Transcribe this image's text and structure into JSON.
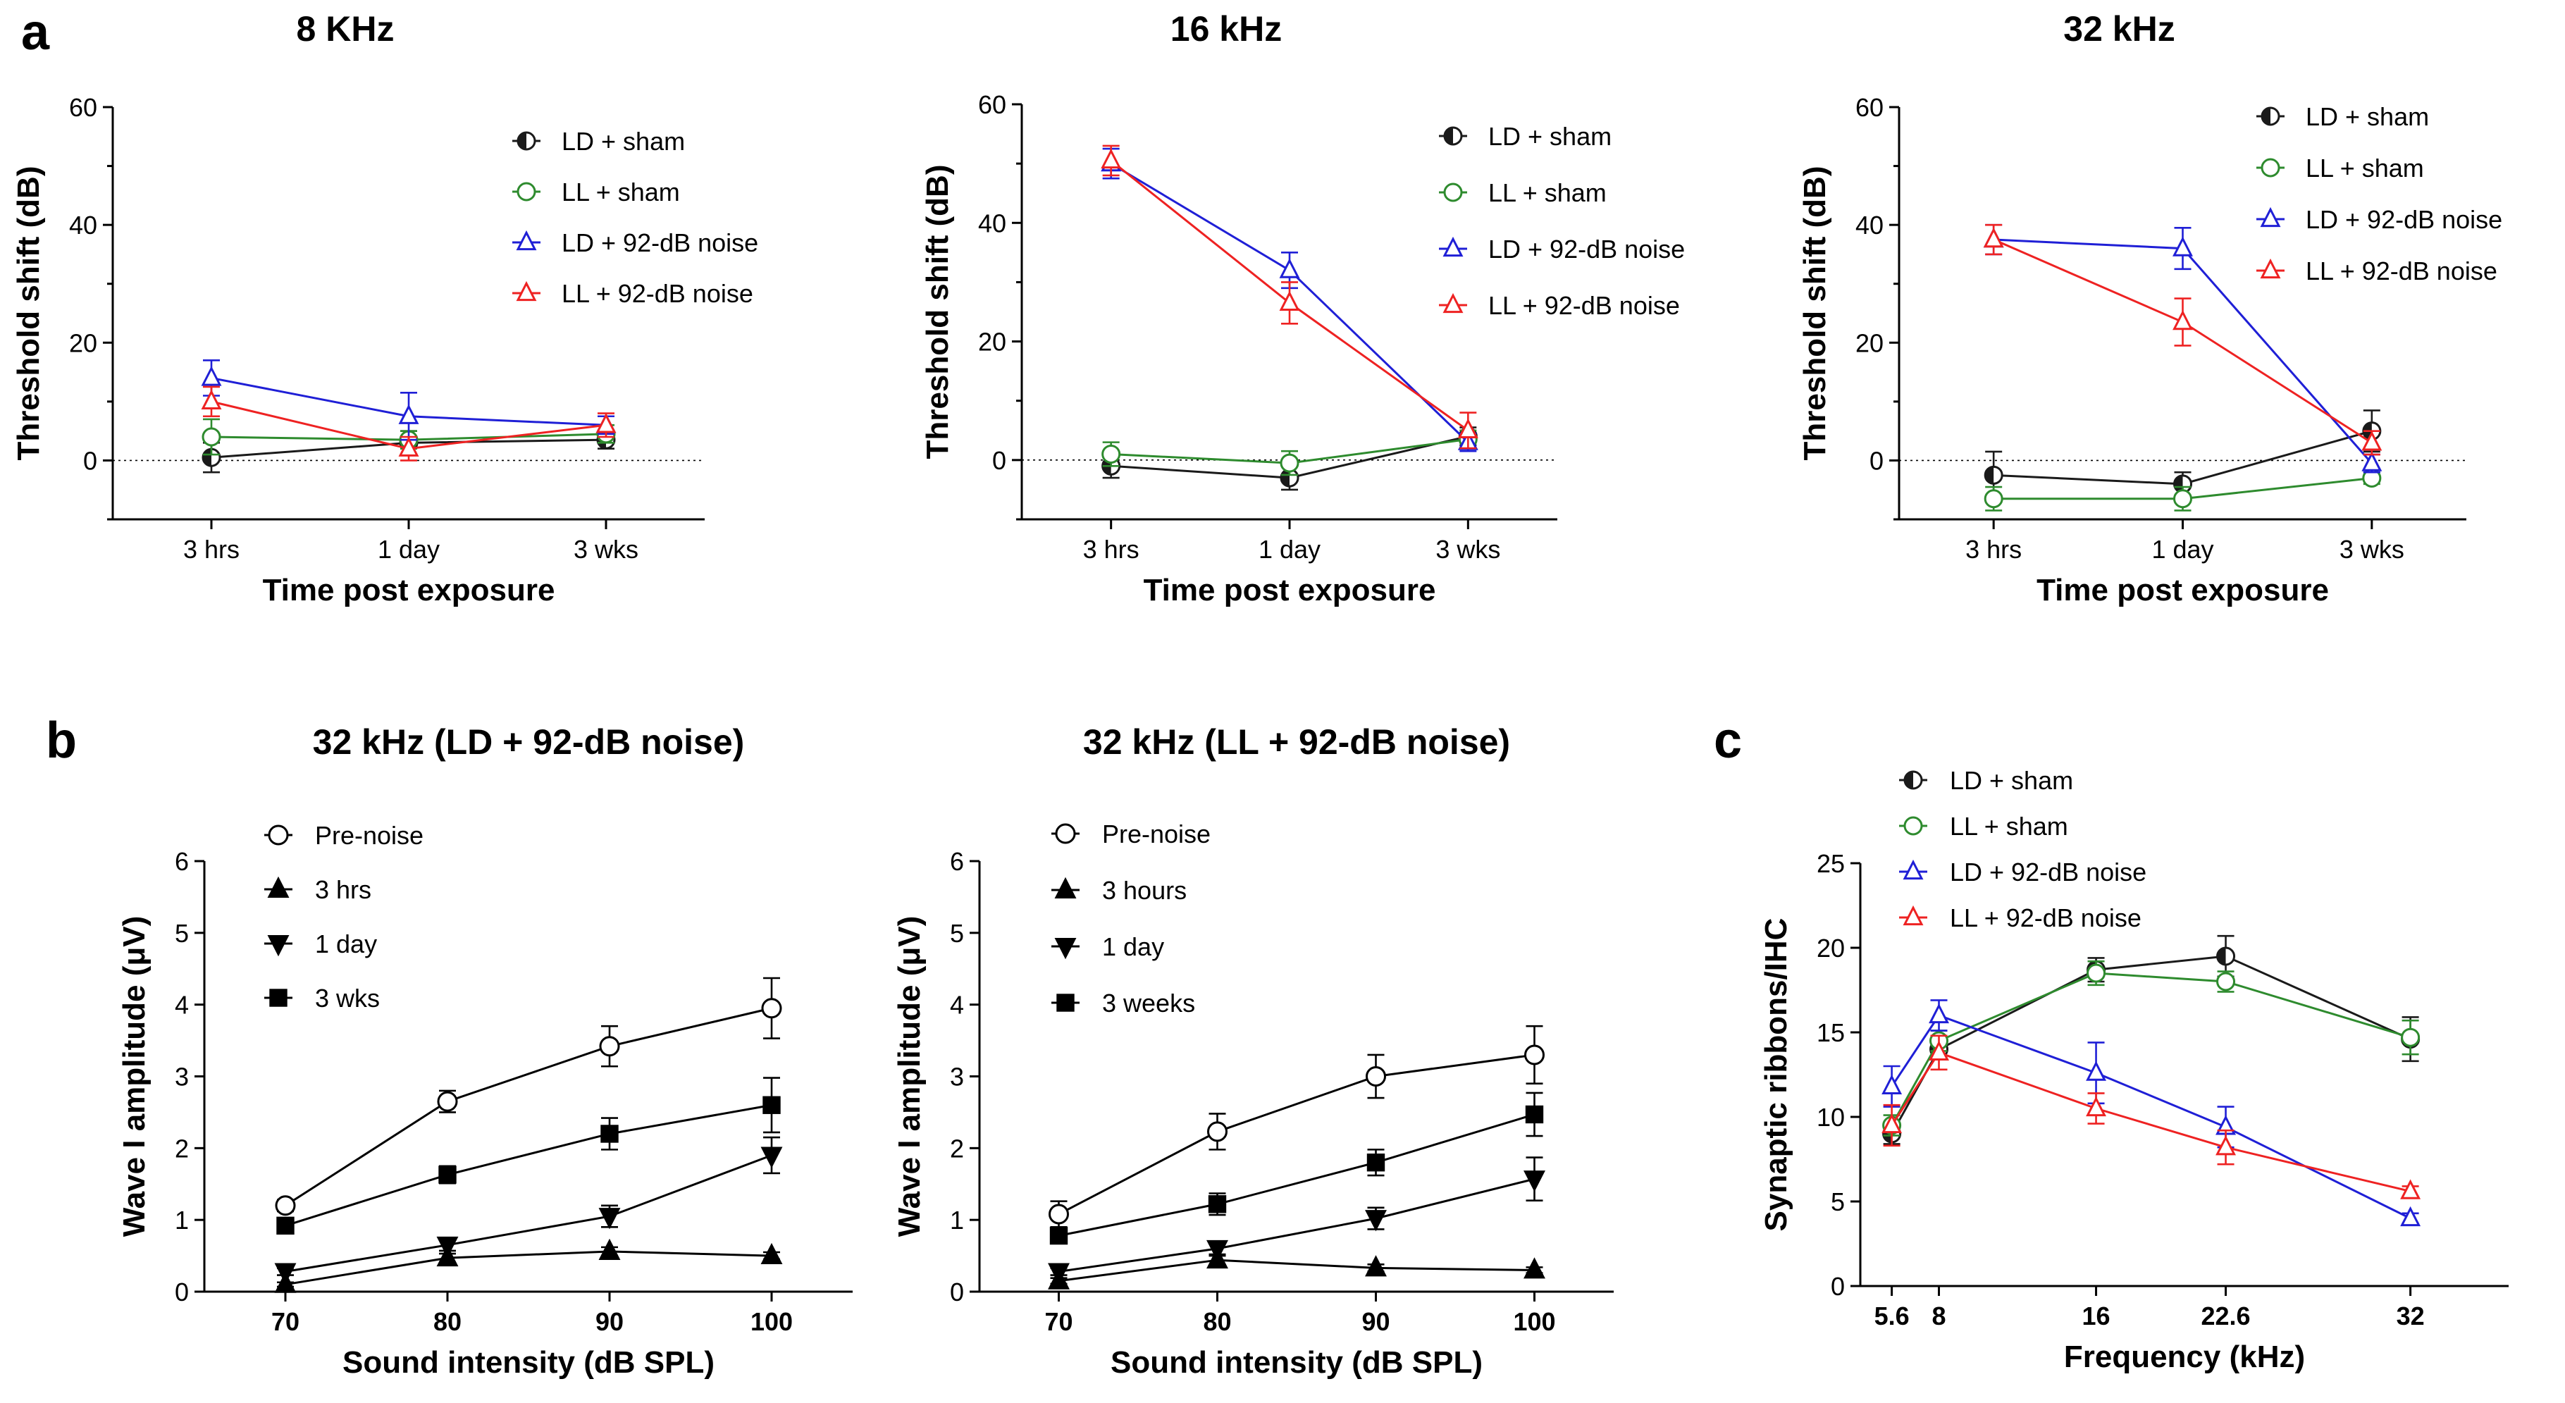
{
  "figure": {
    "panels": [
      {
        "letter": "a"
      },
      {
        "letter": "b"
      },
      {
        "letter": "c"
      }
    ]
  },
  "colors": {
    "ld_sham": "#1a1a1a",
    "ll_sham": "#2e8b2e",
    "ld_noise": "#1f1fd6",
    "ll_noise": "#ee2222"
  },
  "chart_data": [
    {
      "id": "a1",
      "panel": "a",
      "type": "line",
      "title": "8 KHz",
      "xlabel": "Time post exposure",
      "ylabel": "Threshold shift (dB)",
      "categories": [
        "3 hrs",
        "1 day",
        "3 wks"
      ],
      "ylim": [
        -10,
        60
      ],
      "yticks": [
        0,
        20,
        40,
        60
      ],
      "zero_line": true,
      "legend_position": "top-right",
      "series": [
        {
          "name": "LD + sham",
          "marker": "circle-half",
          "color": "#1a1a1a",
          "values": [
            0.5,
            3,
            3.5
          ],
          "errors": [
            2.5,
            2,
            1.5
          ]
        },
        {
          "name": "LL + sham",
          "marker": "circle-open",
          "color": "#2e8b2e",
          "values": [
            4,
            3.5,
            4.5
          ],
          "errors": [
            3,
            1.5,
            1.5
          ]
        },
        {
          "name": "LD + 92-dB noise",
          "marker": "triangle-open",
          "color": "#1f1fd6",
          "values": [
            14,
            7.5,
            6
          ],
          "errors": [
            3,
            4,
            1.5
          ]
        },
        {
          "name": "LL + 92-dB noise",
          "marker": "triangle-open",
          "color": "#ee2222",
          "values": [
            10,
            2,
            6
          ],
          "errors": [
            2.5,
            2,
            2
          ]
        }
      ]
    },
    {
      "id": "a2",
      "panel": "a",
      "type": "line",
      "title": "16 kHz",
      "xlabel": "Time post exposure",
      "ylabel": "Threshold shift (dB)",
      "categories": [
        "3 hrs",
        "1 day",
        "3 wks"
      ],
      "ylim": [
        -10,
        60
      ],
      "yticks": [
        0,
        20,
        40,
        60
      ],
      "zero_line": true,
      "legend_position": "top-right",
      "series": [
        {
          "name": "LD + sham",
          "marker": "circle-half",
          "color": "#1a1a1a",
          "values": [
            -1,
            -3,
            4
          ],
          "errors": [
            2,
            2,
            1.5
          ]
        },
        {
          "name": "LL + sham",
          "marker": "circle-open",
          "color": "#2e8b2e",
          "values": [
            1,
            -0.5,
            3.5
          ],
          "errors": [
            2,
            2,
            1.5
          ]
        },
        {
          "name": "LD + 92-dB noise",
          "marker": "triangle-open",
          "color": "#1f1fd6",
          "values": [
            50,
            32,
            3
          ],
          "errors": [
            2.5,
            3,
            1.5
          ]
        },
        {
          "name": "LL + 92-dB noise",
          "marker": "triangle-open",
          "color": "#ee2222",
          "values": [
            50.5,
            26.5,
            5
          ],
          "errors": [
            2.5,
            3.5,
            3
          ]
        }
      ]
    },
    {
      "id": "a3",
      "panel": "a",
      "type": "line",
      "title": "32 kHz",
      "xlabel": "Time post exposure",
      "ylabel": "Threshold shift (dB)",
      "categories": [
        "3 hrs",
        "1 day",
        "3 wks"
      ],
      "ylim": [
        -10,
        60
      ],
      "yticks": [
        0,
        20,
        40,
        60
      ],
      "zero_line": true,
      "legend_position": "top-right",
      "series": [
        {
          "name": "LD + sham",
          "marker": "circle-half",
          "color": "#1a1a1a",
          "values": [
            -2.5,
            -4,
            5
          ],
          "errors": [
            4,
            2,
            3.5
          ]
        },
        {
          "name": "LL + sham",
          "marker": "circle-open",
          "color": "#2e8b2e",
          "values": [
            -6.5,
            -6.5,
            -3
          ],
          "errors": [
            2,
            2,
            1
          ]
        },
        {
          "name": "LD + 92-dB noise",
          "marker": "triangle-open",
          "color": "#1f1fd6",
          "values": [
            37.5,
            36,
            -0.5
          ],
          "errors": [
            2.5,
            3.5,
            1.5
          ]
        },
        {
          "name": "LL + 92-dB noise",
          "marker": "triangle-open",
          "color": "#ee2222",
          "values": [
            37.5,
            23.5,
            3
          ],
          "errors": [
            2.5,
            4,
            2
          ]
        }
      ]
    },
    {
      "id": "b1",
      "panel": "b",
      "type": "line",
      "title": "32 kHz (LD + 92-dB noise)",
      "xlabel": "Sound intensity (dB SPL)",
      "ylabel": "Wave I amplitude (μV)",
      "categories": [
        "70",
        "80",
        "90",
        "100"
      ],
      "ylim": [
        0,
        6
      ],
      "yticks": [
        0,
        1,
        2,
        3,
        4,
        5,
        6
      ],
      "legend_position": "top-left",
      "series": [
        {
          "name": "Pre-noise",
          "marker": "circle-open",
          "color": "#000000",
          "values": [
            1.2,
            2.65,
            3.42,
            3.95
          ],
          "errors": [
            0.08,
            0.15,
            0.28,
            0.42
          ]
        },
        {
          "name": "3 hrs",
          "marker": "triangle-up-filled",
          "color": "#000000",
          "values": [
            0.1,
            0.47,
            0.56,
            0.5
          ],
          "errors": [
            0.03,
            0.06,
            0.06,
            0.05
          ]
        },
        {
          "name": "1 day",
          "marker": "triangle-down-filled",
          "color": "#000000",
          "values": [
            0.28,
            0.65,
            1.05,
            1.9
          ],
          "errors": [
            0.05,
            0.08,
            0.15,
            0.25
          ]
        },
        {
          "name": "3 wks",
          "marker": "square-filled",
          "color": "#000000",
          "values": [
            0.92,
            1.63,
            2.2,
            2.6
          ],
          "errors": [
            0.08,
            0.12,
            0.22,
            0.38
          ]
        }
      ]
    },
    {
      "id": "b2",
      "panel": "b",
      "type": "line",
      "title": "32 kHz (LL + 92-dB noise)",
      "xlabel": "Sound intensity (dB SPL)",
      "ylabel": "Wave I amplitude (μV)",
      "categories": [
        "70",
        "80",
        "90",
        "100"
      ],
      "ylim": [
        0,
        6
      ],
      "yticks": [
        0,
        1,
        2,
        3,
        4,
        5,
        6
      ],
      "legend_position": "top-left",
      "series": [
        {
          "name": "Pre-noise",
          "marker": "circle-open",
          "color": "#000000",
          "values": [
            1.08,
            2.23,
            3.0,
            3.3
          ],
          "errors": [
            0.18,
            0.25,
            0.3,
            0.4
          ]
        },
        {
          "name": "3 hours",
          "marker": "triangle-up-filled",
          "color": "#000000",
          "values": [
            0.15,
            0.44,
            0.33,
            0.3
          ],
          "errors": [
            0.04,
            0.06,
            0.05,
            0.04
          ]
        },
        {
          "name": "1 day",
          "marker": "triangle-down-filled",
          "color": "#000000",
          "values": [
            0.28,
            0.6,
            1.02,
            1.57
          ],
          "errors": [
            0.05,
            0.08,
            0.15,
            0.3
          ]
        },
        {
          "name": "3 weeks",
          "marker": "square-filled",
          "color": "#000000",
          "values": [
            0.78,
            1.22,
            1.8,
            2.47
          ],
          "errors": [
            0.08,
            0.15,
            0.18,
            0.3
          ]
        }
      ]
    },
    {
      "id": "c1",
      "panel": "c",
      "type": "line",
      "title": "",
      "xlabel": "Frequency (kHz)",
      "ylabel": "Synaptic ribbons/IHC",
      "x": [
        5.6,
        8,
        16,
        22.6,
        32
      ],
      "x_tick_labels": [
        "5.6",
        "8",
        "16",
        "22.6",
        "32"
      ],
      "xlim": [
        4,
        37
      ],
      "ylim": [
        0,
        25
      ],
      "yticks": [
        0,
        5,
        10,
        15,
        20,
        25
      ],
      "legend_position": "top-left",
      "series": [
        {
          "name": "LD + sham",
          "marker": "circle-half",
          "color": "#1a1a1a",
          "values": [
            9,
            14,
            18.7,
            19.5,
            14.6
          ],
          "errors": [
            0.6,
            0.6,
            0.7,
            1.2,
            1.3
          ]
        },
        {
          "name": "LL + sham",
          "marker": "circle-open",
          "color": "#2e8b2e",
          "values": [
            9.5,
            14.5,
            18.5,
            18,
            14.7
          ],
          "errors": [
            0.6,
            0.6,
            0.7,
            0.6,
            1.0
          ]
        },
        {
          "name": "LD + 92-dB noise",
          "marker": "triangle-open",
          "color": "#1f1fd6",
          "values": [
            11.8,
            16,
            12.6,
            9.4,
            4
          ],
          "errors": [
            1.2,
            0.9,
            1.8,
            1.2,
            0.3
          ]
        },
        {
          "name": "LL + 92-dB noise",
          "marker": "triangle-open",
          "color": "#ee2222",
          "values": [
            9.5,
            13.8,
            10.5,
            8.2,
            5.6
          ],
          "errors": [
            1.2,
            1.0,
            0.9,
            1.0,
            0.3
          ]
        }
      ]
    }
  ]
}
